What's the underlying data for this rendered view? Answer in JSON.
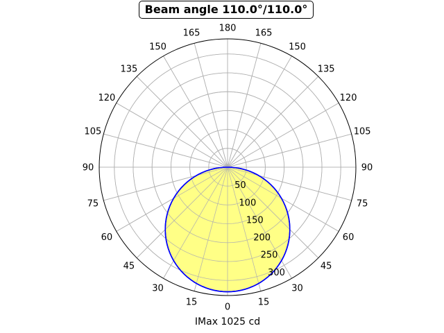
{
  "chart_data": {
    "type": "polar-line",
    "title": "Beam angle 110.0°/110.0°",
    "xlabel": "IMax 1025 cd",
    "angle_tick_labels": [
      "0",
      "15",
      "30",
      "45",
      "60",
      "75",
      "90",
      "105",
      "120",
      "135",
      "150",
      "165",
      "180",
      "165",
      "150",
      "135",
      "120",
      "105",
      "90",
      "75",
      "60",
      "45",
      "30",
      "15"
    ],
    "angle_ticks_deg": [
      0,
      15,
      30,
      45,
      60,
      75,
      90,
      105,
      120,
      135,
      150,
      165,
      180,
      195,
      210,
      225,
      240,
      255,
      270,
      285,
      300,
      315,
      330,
      345
    ],
    "radial_ticks": [
      50,
      100,
      150,
      200,
      250,
      300
    ],
    "radial_tick_labels": [
      "50",
      "100",
      "150",
      "200",
      "250",
      "300"
    ],
    "rlim": [
      0,
      340
    ],
    "grid": true,
    "series": [
      {
        "type": "cosine-lobe",
        "max": 330,
        "line_color": "#0000ff",
        "fill_color": "#ffff80"
      }
    ]
  }
}
